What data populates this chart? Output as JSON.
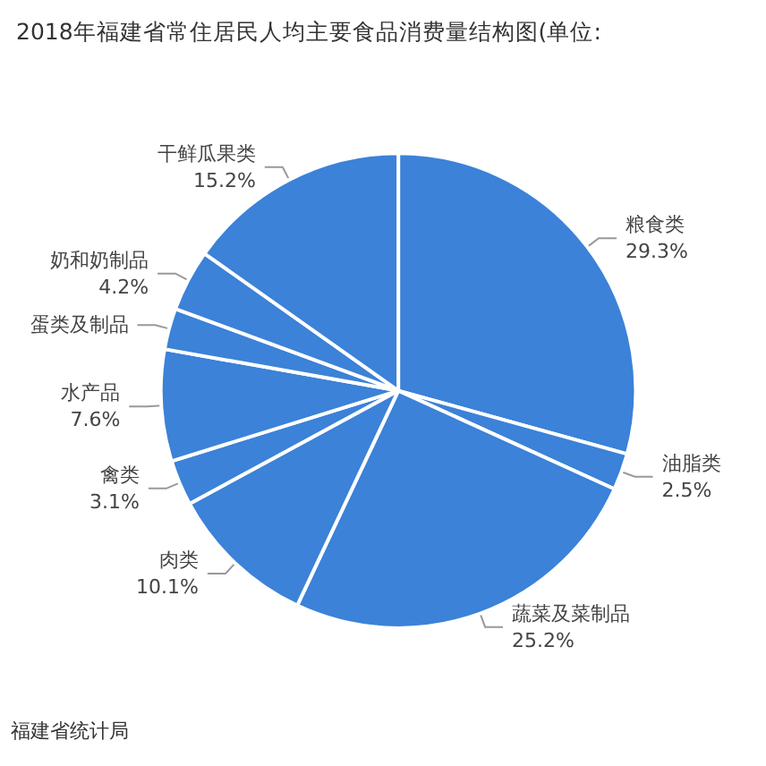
{
  "chart_data": {
    "type": "pie",
    "title": "2018年福建省常住居民人均主要食品消费量结构图(单位:",
    "categories": [
      "粮食类",
      "油脂类",
      "蔬菜及菜制品",
      "肉类",
      "禽类",
      "水产品",
      "蛋类及制品",
      "奶和奶制品",
      "干鲜瓜果类"
    ],
    "values": [
      29.3,
      2.5,
      25.2,
      10.1,
      3.1,
      7.6,
      2.8,
      4.2,
      15.2
    ],
    "colors": [
      "#3b82d8",
      "#3b82d8",
      "#3b82d8",
      "#3b82d8",
      "#3b82d8",
      "#3b82d8",
      "#3b82d8",
      "#3b82d8",
      "#3b82d8"
    ],
    "value_labels": [
      "29.3%",
      "2.5%",
      "25.2%",
      "10.1%",
      "3.1%",
      "7.6%",
      null,
      "4.2%",
      "15.2%"
    ],
    "legend": false,
    "annotations": [
      "福建省统计局"
    ]
  }
}
